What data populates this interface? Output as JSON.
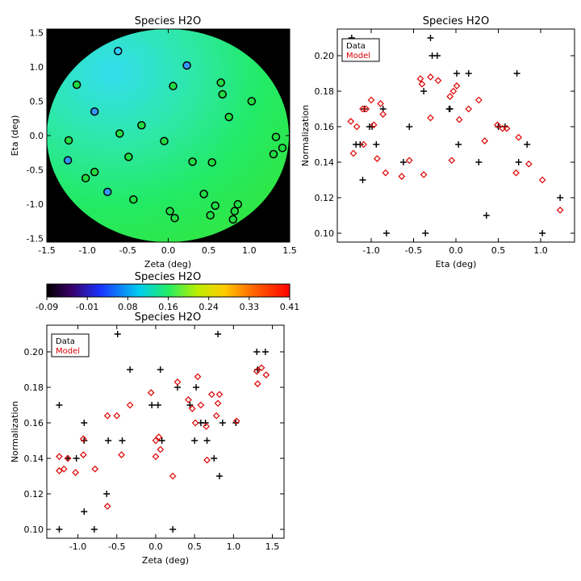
{
  "chart_data": [
    {
      "id": "map",
      "type": "scatter",
      "title": "Species H2O",
      "xlabel": "Zeta (deg)",
      "ylabel": "Eta (deg)",
      "xlim": [
        -1.5,
        1.5
      ],
      "ylim": [
        -1.55,
        1.55
      ],
      "x_ticks": [
        -1.5,
        -1.0,
        -0.5,
        0.0,
        0.5,
        1.0,
        1.5
      ],
      "y_ticks": [
        -1.5,
        -1.0,
        -0.5,
        0.0,
        0.5,
        1.0,
        1.5
      ],
      "x_tick_labels": [
        "-1.5",
        "-1.0",
        "-0.5",
        "0.0",
        "0.5",
        "1.0",
        "1.5"
      ],
      "y_tick_labels": [
        "-1.5",
        "-1.0",
        "-0.5",
        "0.0",
        "0.5",
        "1.0",
        "1.5"
      ],
      "background": "filled disk shaded by normalization value on a black field",
      "point_colors": {
        "cyan": "#33ccff",
        "blue": "#3399ff",
        "green": "#22dd44"
      },
      "points": [
        {
          "x": -0.62,
          "y": 1.23,
          "c": "cyan"
        },
        {
          "x": 0.23,
          "y": 1.02,
          "c": "blue"
        },
        {
          "x": -1.13,
          "y": 0.74,
          "c": "green"
        },
        {
          "x": 0.06,
          "y": 0.72,
          "c": "green"
        },
        {
          "x": 0.65,
          "y": 0.77,
          "c": "green"
        },
        {
          "x": 0.67,
          "y": 0.6,
          "c": "green"
        },
        {
          "x": 1.03,
          "y": 0.5,
          "c": "green"
        },
        {
          "x": -0.91,
          "y": 0.35,
          "c": "blue"
        },
        {
          "x": 0.75,
          "y": 0.27,
          "c": "green"
        },
        {
          "x": -0.33,
          "y": 0.15,
          "c": "green"
        },
        {
          "x": -0.6,
          "y": 0.03,
          "c": "green"
        },
        {
          "x": -1.23,
          "y": -0.07,
          "c": "green"
        },
        {
          "x": -0.05,
          "y": -0.08,
          "c": "green"
        },
        {
          "x": 1.33,
          "y": -0.02,
          "c": "green"
        },
        {
          "x": 1.41,
          "y": -0.18,
          "c": "green"
        },
        {
          "x": 1.3,
          "y": -0.27,
          "c": "green"
        },
        {
          "x": -0.49,
          "y": -0.31,
          "c": "green"
        },
        {
          "x": -1.24,
          "y": -0.36,
          "c": "blue"
        },
        {
          "x": 0.3,
          "y": -0.38,
          "c": "green"
        },
        {
          "x": 0.54,
          "y": -0.39,
          "c": "green"
        },
        {
          "x": -0.91,
          "y": -0.53,
          "c": "green"
        },
        {
          "x": -1.02,
          "y": -0.62,
          "c": "green"
        },
        {
          "x": -0.75,
          "y": -0.82,
          "c": "blue"
        },
        {
          "x": 0.44,
          "y": -0.85,
          "c": "green"
        },
        {
          "x": -0.43,
          "y": -0.93,
          "c": "green"
        },
        {
          "x": 0.86,
          "y": -1.0,
          "c": "green"
        },
        {
          "x": 0.58,
          "y": -1.02,
          "c": "green"
        },
        {
          "x": 0.02,
          "y": -1.1,
          "c": "green"
        },
        {
          "x": 0.82,
          "y": -1.1,
          "c": "green"
        },
        {
          "x": 0.52,
          "y": -1.16,
          "c": "green"
        },
        {
          "x": 0.08,
          "y": -1.2,
          "c": "green"
        },
        {
          "x": 0.8,
          "y": -1.22,
          "c": "green"
        }
      ]
    },
    {
      "id": "colorbar",
      "type": "heatmap",
      "title": "Species H2O",
      "range": [
        -0.09,
        0.41
      ],
      "tick_labels": [
        "-0.09",
        "-0.01",
        "0.08",
        "0.16",
        "0.24",
        "0.33",
        "0.41"
      ],
      "colormap": [
        "#000000",
        "#3a0066",
        "#1a33ff",
        "#00ccee",
        "#22ee66",
        "#bbee00",
        "#ffcc00",
        "#ff6600",
        "#ff0000"
      ]
    },
    {
      "id": "eta",
      "type": "scatter",
      "title": "Species H2O",
      "xlabel": "Eta (deg)",
      "ylabel": "Normalization",
      "xlim": [
        -1.4,
        1.4
      ],
      "ylim": [
        0.095,
        0.215
      ],
      "x_ticks": [
        -1.0,
        -0.5,
        0.0,
        0.5,
        1.0
      ],
      "x_tick_labels": [
        "-1.0",
        "-0.5",
        "0.0",
        "0.5",
        "1.0"
      ],
      "y_ticks": [
        0.1,
        0.12,
        0.14,
        0.16,
        0.18,
        0.2
      ],
      "y_tick_labels": [
        "0.10",
        "0.12",
        "0.14",
        "0.16",
        "0.18",
        "0.20"
      ],
      "legend": {
        "position": "top-left",
        "items": [
          {
            "label": "Data",
            "color": "#000000"
          },
          {
            "label": "Model",
            "color": "#dd0000"
          }
        ]
      },
      "series": [
        {
          "name": "Data",
          "marker": "plus",
          "color": "#000000",
          "points": [
            [
              -1.23,
              0.21
            ],
            [
              -1.18,
              0.15
            ],
            [
              -1.13,
              0.15
            ],
            [
              -1.1,
              0.13
            ],
            [
              -1.08,
              0.17
            ],
            [
              -1.02,
              0.16
            ],
            [
              -0.99,
              0.16
            ],
            [
              -0.94,
              0.15
            ],
            [
              -0.82,
              0.1
            ],
            [
              -0.86,
              0.17
            ],
            [
              -0.62,
              0.14
            ],
            [
              -0.55,
              0.16
            ],
            [
              -0.38,
              0.18
            ],
            [
              -0.36,
              0.1
            ],
            [
              -0.3,
              0.21
            ],
            [
              -0.28,
              0.2
            ],
            [
              -0.22,
              0.2
            ],
            [
              -0.08,
              0.17
            ],
            [
              -0.07,
              0.17
            ],
            [
              0.01,
              0.19
            ],
            [
              0.03,
              0.15
            ],
            [
              0.15,
              0.19
            ],
            [
              0.27,
              0.14
            ],
            [
              0.36,
              0.11
            ],
            [
              0.5,
              0.16
            ],
            [
              0.58,
              0.16
            ],
            [
              0.72,
              0.19
            ],
            [
              0.74,
              0.14
            ],
            [
              0.84,
              0.15
            ],
            [
              1.02,
              0.1
            ],
            [
              1.23,
              0.12
            ]
          ]
        },
        {
          "name": "Model",
          "marker": "diamond",
          "color": "#dd0000",
          "points": [
            [
              -1.24,
              0.163
            ],
            [
              -1.21,
              0.145
            ],
            [
              -1.17,
              0.16
            ],
            [
              -1.1,
              0.17
            ],
            [
              -1.09,
              0.15
            ],
            [
              -1.06,
              0.17
            ],
            [
              -1.0,
              0.175
            ],
            [
              -0.97,
              0.161
            ],
            [
              -0.93,
              0.142
            ],
            [
              -0.89,
              0.173
            ],
            [
              -0.86,
              0.167
            ],
            [
              -0.83,
              0.134
            ],
            [
              -0.64,
              0.132
            ],
            [
              -0.55,
              0.141
            ],
            [
              -0.42,
              0.187
            ],
            [
              -0.4,
              0.184
            ],
            [
              -0.38,
              0.133
            ],
            [
              -0.3,
              0.165
            ],
            [
              -0.3,
              0.188
            ],
            [
              -0.21,
              0.186
            ],
            [
              -0.07,
              0.177
            ],
            [
              -0.05,
              0.141
            ],
            [
              -0.03,
              0.18
            ],
            [
              0.01,
              0.183
            ],
            [
              0.04,
              0.164
            ],
            [
              0.15,
              0.17
            ],
            [
              0.27,
              0.175
            ],
            [
              0.34,
              0.152
            ],
            [
              0.49,
              0.161
            ],
            [
              0.55,
              0.159
            ],
            [
              0.6,
              0.159
            ],
            [
              0.71,
              0.134
            ],
            [
              0.74,
              0.154
            ],
            [
              0.86,
              0.139
            ],
            [
              1.02,
              0.13
            ],
            [
              1.23,
              0.113
            ]
          ]
        }
      ]
    },
    {
      "id": "zeta",
      "type": "scatter",
      "title": "Species H2O",
      "xlabel": "Zeta (deg)",
      "ylabel": "Normalization",
      "xlim": [
        -1.4,
        1.65
      ],
      "ylim": [
        0.095,
        0.215
      ],
      "x_ticks": [
        -1.0,
        -0.5,
        0.0,
        0.5,
        1.0,
        1.5
      ],
      "x_tick_labels": [
        "-1.0",
        "-0.5",
        "0.0",
        "0.5",
        "1.0",
        "1.5"
      ],
      "y_ticks": [
        0.1,
        0.12,
        0.14,
        0.16,
        0.18,
        0.2
      ],
      "y_tick_labels": [
        "0.10",
        "0.12",
        "0.14",
        "0.16",
        "0.18",
        "0.20"
      ],
      "legend": {
        "position": "top-left",
        "items": [
          {
            "label": "Data",
            "color": "#000000"
          },
          {
            "label": "Model",
            "color": "#dd0000"
          }
        ]
      },
      "series": [
        {
          "name": "Data",
          "marker": "plus",
          "color": "#000000",
          "points": [
            [
              -1.24,
              0.17
            ],
            [
              -1.24,
              0.1
            ],
            [
              -1.13,
              0.14
            ],
            [
              -1.02,
              0.14
            ],
            [
              -0.92,
              0.16
            ],
            [
              -0.92,
              0.15
            ],
            [
              -0.92,
              0.11
            ],
            [
              -0.79,
              0.1
            ],
            [
              -0.63,
              0.12
            ],
            [
              -0.61,
              0.15
            ],
            [
              -0.49,
              0.21
            ],
            [
              -0.43,
              0.15
            ],
            [
              -0.33,
              0.19
            ],
            [
              -0.05,
              0.17
            ],
            [
              0.03,
              0.17
            ],
            [
              0.06,
              0.19
            ],
            [
              0.08,
              0.15
            ],
            [
              0.22,
              0.1
            ],
            [
              0.28,
              0.18
            ],
            [
              0.44,
              0.17
            ],
            [
              0.5,
              0.15
            ],
            [
              0.52,
              0.18
            ],
            [
              0.58,
              0.16
            ],
            [
              0.64,
              0.16
            ],
            [
              0.66,
              0.15
            ],
            [
              0.75,
              0.14
            ],
            [
              0.8,
              0.21
            ],
            [
              0.82,
              0.13
            ],
            [
              0.86,
              0.16
            ],
            [
              1.03,
              0.16
            ],
            [
              1.3,
              0.2
            ],
            [
              1.31,
              0.19
            ],
            [
              1.41,
              0.2
            ]
          ]
        },
        {
          "name": "Model",
          "marker": "diamond",
          "color": "#dd0000",
          "points": [
            [
              -1.24,
              0.141
            ],
            [
              -1.24,
              0.133
            ],
            [
              -1.18,
              0.134
            ],
            [
              -1.13,
              0.14
            ],
            [
              -1.03,
              0.132
            ],
            [
              -0.93,
              0.142
            ],
            [
              -0.93,
              0.151
            ],
            [
              -0.78,
              0.134
            ],
            [
              -0.62,
              0.164
            ],
            [
              -0.62,
              0.113
            ],
            [
              -0.5,
              0.164
            ],
            [
              -0.44,
              0.142
            ],
            [
              -0.33,
              0.17
            ],
            [
              -0.06,
              0.177
            ],
            [
              0.0,
              0.15
            ],
            [
              0.04,
              0.152
            ],
            [
              0.06,
              0.145
            ],
            [
              0.0,
              0.141
            ],
            [
              0.22,
              0.13
            ],
            [
              0.28,
              0.183
            ],
            [
              0.42,
              0.173
            ],
            [
              0.47,
              0.168
            ],
            [
              0.51,
              0.16
            ],
            [
              0.54,
              0.186
            ],
            [
              0.58,
              0.17
            ],
            [
              0.65,
              0.158
            ],
            [
              0.66,
              0.139
            ],
            [
              0.72,
              0.176
            ],
            [
              0.78,
              0.164
            ],
            [
              0.8,
              0.171
            ],
            [
              0.82,
              0.176
            ],
            [
              1.04,
              0.161
            ],
            [
              1.3,
              0.189
            ],
            [
              1.31,
              0.182
            ],
            [
              1.36,
              0.191
            ],
            [
              1.42,
              0.187
            ]
          ]
        }
      ]
    }
  ]
}
